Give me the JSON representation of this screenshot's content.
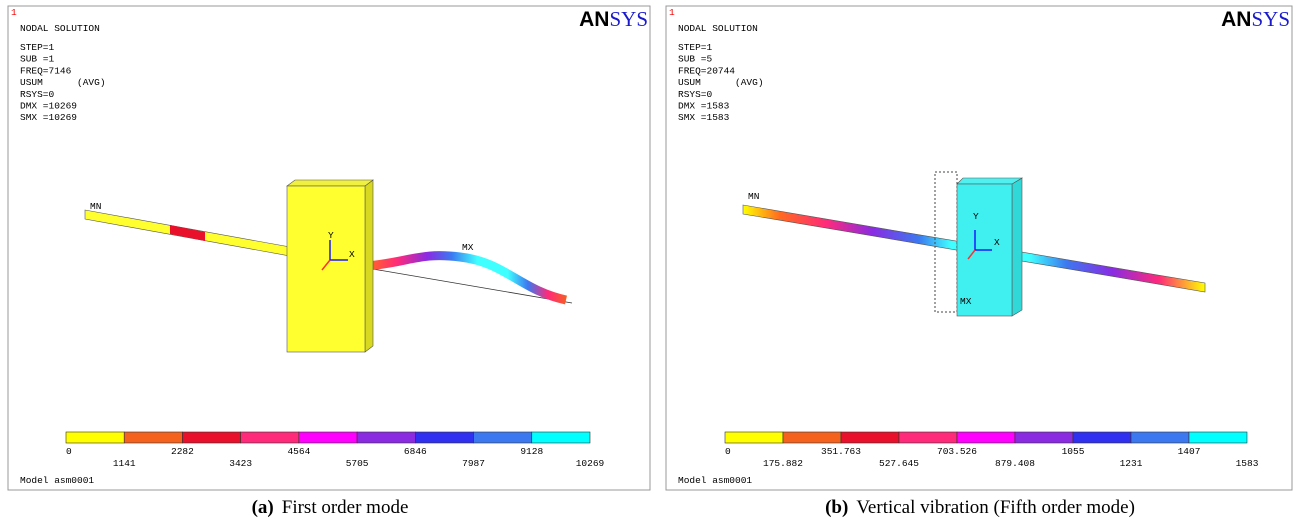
{
  "panels": [
    {
      "number": "1",
      "title": "NODAL SOLUTION",
      "info": [
        "STEP=1",
        "SUB =1",
        "FREQ=7146",
        "USUM      (AVG)",
        "RSYS=0",
        "DMX =10269",
        "SMX =10269"
      ],
      "logo": [
        "AN",
        "SYS"
      ],
      "labels": {
        "min": "MN",
        "max": "MX",
        "y": "Y",
        "x": "X"
      },
      "legend": [
        "0",
        "1141",
        "2282",
        "3423",
        "4564",
        "5705",
        "6846",
        "7987",
        "9128",
        "10269"
      ],
      "model": "Model asm0001",
      "caption": {
        "tag": "(a)",
        "text": "First order mode"
      }
    },
    {
      "number": "1",
      "title": "NODAL SOLUTION",
      "info": [
        "STEP=1",
        "SUB =5",
        "FREQ=20744",
        "USUM      (AVG)",
        "RSYS=0",
        "DMX =1583",
        "SMX =1583"
      ],
      "logo": [
        "AN",
        "SYS"
      ],
      "labels": {
        "min": "MN",
        "max": "MX",
        "y": "Y",
        "x": "X"
      },
      "legend": [
        "0",
        "175.882",
        "351.763",
        "527.645",
        "703.526",
        "879.408",
        "1055",
        "1231",
        "1407",
        "1583"
      ],
      "model": "Model asm0001",
      "caption": {
        "tag": "(b)",
        "text": "Vertical vibration (Fifth order mode)"
      }
    }
  ],
  "legend_colors": [
    "#ffff00",
    "#f5621e",
    "#e8102a",
    "#ff2a7a",
    "#ff00ff",
    "#8a2be2",
    "#3030f0",
    "#3c78f0",
    "#00ffff"
  ]
}
